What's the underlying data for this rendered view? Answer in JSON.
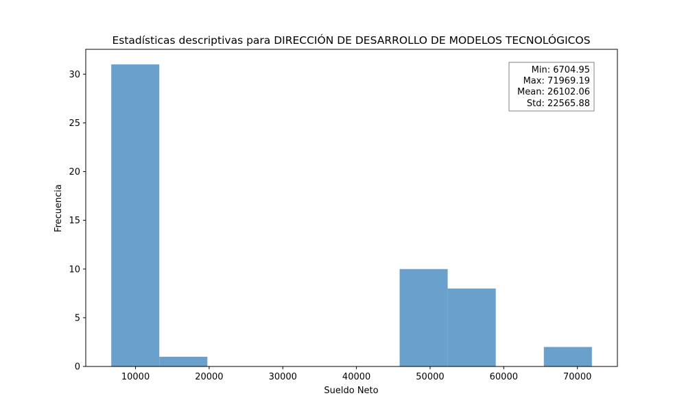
{
  "chart_data": {
    "type": "bar",
    "title": "Estadísticas descriptivas para DIRECCIÓN DE DESARROLLO DE MODELOS TECNOLÓGICOS",
    "xlabel": "Sueldo Neto",
    "ylabel": "Frecuencia",
    "xlim": [
      3241.74,
      75432.4
    ],
    "ylim": [
      0,
      32.55
    ],
    "xticks": [
      10000,
      20000,
      30000,
      40000,
      50000,
      60000,
      70000
    ],
    "yticks": [
      0,
      5,
      10,
      15,
      20,
      25,
      30
    ],
    "grid": false,
    "color": "#6aa0cc",
    "bins": [
      {
        "x0": 6704.95,
        "x1": 13231.37,
        "count": 31
      },
      {
        "x0": 13231.37,
        "x1": 19757.8,
        "count": 1
      },
      {
        "x0": 19757.8,
        "x1": 26284.22,
        "count": 0
      },
      {
        "x0": 26284.22,
        "x1": 32810.65,
        "count": 0
      },
      {
        "x0": 32810.65,
        "x1": 39337.07,
        "count": 0
      },
      {
        "x0": 39337.07,
        "x1": 45863.5,
        "count": 0
      },
      {
        "x0": 45863.5,
        "x1": 52389.92,
        "count": 10
      },
      {
        "x0": 52389.92,
        "x1": 58916.34,
        "count": 8
      },
      {
        "x0": 58916.34,
        "x1": 65442.77,
        "count": 0
      },
      {
        "x0": 65442.77,
        "x1": 71969.19,
        "count": 2
      }
    ],
    "stats_box": {
      "position": "top-right",
      "lines": [
        "Min: 6704.95",
        "Max: 71969.19",
        "Mean: 26102.06",
        "Std: 22565.88"
      ]
    }
  }
}
